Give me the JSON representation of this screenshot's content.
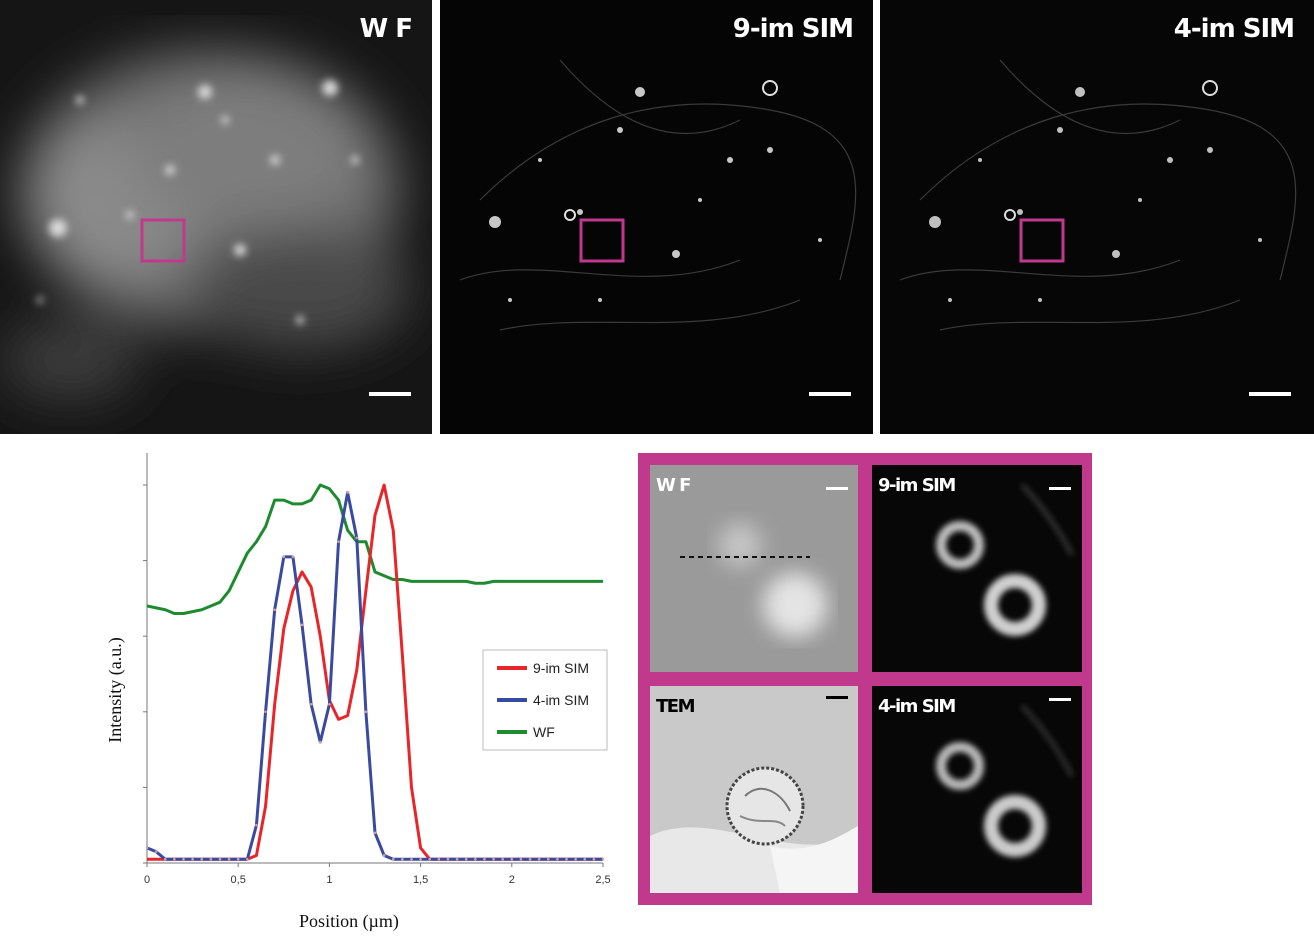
{
  "top_panels": [
    {
      "label": "W F",
      "kind": "wf"
    },
    {
      "label": "9-im SIM",
      "kind": "sim"
    },
    {
      "label": "4-im SIM",
      "kind": "sim"
    }
  ],
  "inset_panels": [
    {
      "label": "W F",
      "kind": "wf-zoom"
    },
    {
      "label": "9-im SIM",
      "kind": "sim-zoom"
    },
    {
      "label": "TEM",
      "kind": "tem"
    },
    {
      "label": "4-im SIM",
      "kind": "sim-zoom"
    }
  ],
  "colors": {
    "roi": "#c0398d",
    "nine_im": "#e8262a",
    "four_im": "#3a4aa0",
    "wf": "#1e8b2e"
  },
  "chart_data": {
    "type": "line",
    "xlabel": "Position (µm)",
    "ylabel": "Intensity (a.u.)",
    "xlim": [
      0,
      2.5
    ],
    "ylim": [
      0,
      1.0
    ],
    "xticks": [
      "0",
      "0,5",
      "1",
      "1,5",
      "2",
      "2,5"
    ],
    "legend_position": "right",
    "x": [
      0,
      0.05,
      0.1,
      0.15,
      0.2,
      0.25,
      0.3,
      0.35,
      0.4,
      0.45,
      0.5,
      0.55,
      0.6,
      0.65,
      0.7,
      0.75,
      0.8,
      0.85,
      0.9,
      0.95,
      1.0,
      1.05,
      1.1,
      1.15,
      1.2,
      1.25,
      1.3,
      1.35,
      1.4,
      1.45,
      1.5,
      1.55,
      1.6,
      1.65,
      1.7,
      1.75,
      1.8,
      1.85,
      1.9,
      1.95,
      2.0,
      2.05,
      2.1,
      2.15,
      2.2,
      2.25,
      2.3,
      2.35,
      2.4,
      2.45,
      2.5
    ],
    "series": [
      {
        "name": "9-im SIM",
        "values": [
          0.01,
          0.01,
          0.01,
          0.01,
          0.01,
          0.01,
          0.01,
          0.01,
          0.01,
          0.01,
          0.01,
          0.01,
          0.02,
          0.15,
          0.42,
          0.62,
          0.72,
          0.77,
          0.73,
          0.6,
          0.43,
          0.38,
          0.39,
          0.51,
          0.72,
          0.92,
          1.0,
          0.88,
          0.55,
          0.2,
          0.04,
          0.01,
          0.01,
          0.01,
          0.01,
          0.01,
          0.01,
          0.01,
          0.01,
          0.01,
          0.01,
          0.01,
          0.01,
          0.01,
          0.01,
          0.01,
          0.01,
          0.01,
          0.01,
          0.01,
          0.01
        ]
      },
      {
        "name": "4-im SIM",
        "values": [
          0.04,
          0.03,
          0.01,
          0.01,
          0.01,
          0.01,
          0.01,
          0.01,
          0.01,
          0.01,
          0.01,
          0.01,
          0.1,
          0.4,
          0.67,
          0.81,
          0.81,
          0.63,
          0.42,
          0.32,
          0.42,
          0.85,
          0.98,
          0.86,
          0.4,
          0.08,
          0.02,
          0.01,
          0.01,
          0.01,
          0.01,
          0.01,
          0.01,
          0.01,
          0.01,
          0.01,
          0.01,
          0.01,
          0.01,
          0.01,
          0.01,
          0.01,
          0.01,
          0.01,
          0.01,
          0.01,
          0.01,
          0.01,
          0.01,
          0.01,
          0.01
        ]
      },
      {
        "name": "WF",
        "values": [
          0.68,
          0.675,
          0.67,
          0.66,
          0.66,
          0.665,
          0.67,
          0.68,
          0.69,
          0.72,
          0.77,
          0.82,
          0.85,
          0.89,
          0.96,
          0.96,
          0.95,
          0.95,
          0.96,
          1.0,
          0.99,
          0.96,
          0.88,
          0.85,
          0.85,
          0.77,
          0.76,
          0.75,
          0.75,
          0.745,
          0.745,
          0.745,
          0.745,
          0.745,
          0.745,
          0.745,
          0.74,
          0.74,
          0.745,
          0.745,
          0.745,
          0.745,
          0.745,
          0.745,
          0.745,
          0.745,
          0.745,
          0.745,
          0.745,
          0.745,
          0.745
        ]
      }
    ]
  }
}
